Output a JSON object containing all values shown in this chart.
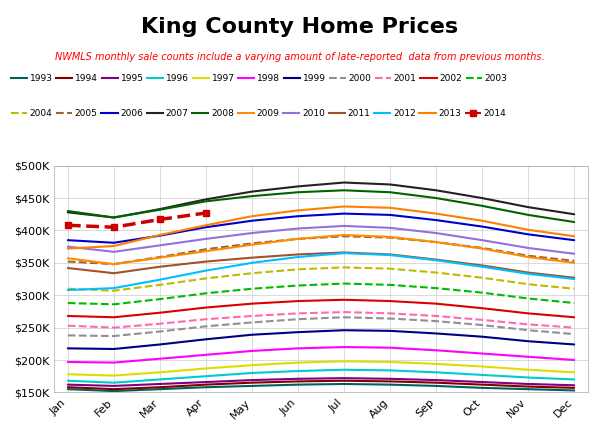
{
  "title": "King County Home Prices",
  "subtitle": "NWMLS monthly sale counts include a varying amount of late-reported  data from previous months.",
  "months": [
    "Jan",
    "Feb",
    "Mar",
    "Apr",
    "May",
    "Jun",
    "Jul",
    "Aug",
    "Sep",
    "Oct",
    "Nov",
    "Dec"
  ],
  "ylim": [
    150000,
    500000
  ],
  "yticks": [
    150000,
    200000,
    250000,
    300000,
    350000,
    400000,
    450000,
    500000
  ],
  "series": [
    {
      "year": "1993",
      "color": "#006060",
      "linestyle": "solid",
      "linewidth": 1.5,
      "values": [
        155000,
        152000,
        155000,
        158000,
        160000,
        162000,
        163000,
        162000,
        160000,
        157000,
        155000,
        153000
      ]
    },
    {
      "year": "1994",
      "color": "#800000",
      "linestyle": "solid",
      "linewidth": 1.5,
      "values": [
        158000,
        155000,
        158000,
        162000,
        165000,
        167000,
        168000,
        167000,
        165000,
        162000,
        159000,
        157000
      ]
    },
    {
      "year": "1995",
      "color": "#800080",
      "linestyle": "solid",
      "linewidth": 1.5,
      "values": [
        162000,
        160000,
        163000,
        166000,
        169000,
        171000,
        172000,
        171000,
        169000,
        166000,
        163000,
        161000
      ]
    },
    {
      "year": "1996",
      "color": "#00CCCC",
      "linestyle": "solid",
      "linewidth": 1.5,
      "values": [
        168000,
        165000,
        170000,
        175000,
        180000,
        183000,
        185000,
        184000,
        181000,
        177000,
        173000,
        170000
      ]
    },
    {
      "year": "1997",
      "color": "#DDDD00",
      "linestyle": "solid",
      "linewidth": 1.5,
      "values": [
        178000,
        176000,
        181000,
        187000,
        192000,
        196000,
        198000,
        197000,
        194000,
        190000,
        185000,
        181000
      ]
    },
    {
      "year": "1998",
      "color": "#FF00FF",
      "linestyle": "solid",
      "linewidth": 1.5,
      "values": [
        197000,
        196000,
        202000,
        208000,
        214000,
        218000,
        220000,
        219000,
        215000,
        210000,
        205000,
        200000
      ]
    },
    {
      "year": "1999",
      "color": "#000080",
      "linestyle": "solid",
      "linewidth": 1.5,
      "values": [
        218000,
        217000,
        224000,
        232000,
        239000,
        243000,
        246000,
        245000,
        241000,
        236000,
        229000,
        224000
      ]
    },
    {
      "year": "2000",
      "color": "#909090",
      "linestyle": "dashed",
      "linewidth": 1.5,
      "values": [
        238000,
        237000,
        244000,
        252000,
        258000,
        263000,
        266000,
        264000,
        260000,
        254000,
        246000,
        240000
      ]
    },
    {
      "year": "2001",
      "color": "#FF69B4",
      "linestyle": "dashed",
      "linewidth": 1.5,
      "values": [
        253000,
        250000,
        256000,
        263000,
        268000,
        272000,
        274000,
        272000,
        268000,
        262000,
        255000,
        250000
      ]
    },
    {
      "year": "2002",
      "color": "#DD0000",
      "linestyle": "solid",
      "linewidth": 1.5,
      "values": [
        268000,
        266000,
        273000,
        281000,
        287000,
        291000,
        293000,
        291000,
        287000,
        280000,
        272000,
        266000
      ]
    },
    {
      "year": "2003",
      "color": "#00BB00",
      "linestyle": "dashed",
      "linewidth": 1.5,
      "values": [
        288000,
        286000,
        294000,
        303000,
        310000,
        315000,
        318000,
        316000,
        311000,
        304000,
        295000,
        288000
      ]
    },
    {
      "year": "2004",
      "color": "#BBBB00",
      "linestyle": "dashed",
      "linewidth": 1.5,
      "values": [
        310000,
        307000,
        316000,
        326000,
        334000,
        340000,
        343000,
        341000,
        335000,
        327000,
        317000,
        310000
      ]
    },
    {
      "year": "2005",
      "color": "#996633",
      "linestyle": "dashed",
      "linewidth": 1.5,
      "values": [
        352000,
        348000,
        359000,
        371000,
        380000,
        387000,
        391000,
        389000,
        382000,
        373000,
        361000,
        353000
      ]
    },
    {
      "year": "2006",
      "color": "#0000CC",
      "linestyle": "solid",
      "linewidth": 1.5,
      "values": [
        385000,
        381000,
        392000,
        405000,
        415000,
        422000,
        426000,
        424000,
        416000,
        406000,
        394000,
        385000
      ]
    },
    {
      "year": "2007",
      "color": "#222222",
      "linestyle": "solid",
      "linewidth": 1.5,
      "values": [
        428000,
        420000,
        433000,
        448000,
        460000,
        468000,
        474000,
        471000,
        462000,
        450000,
        436000,
        425000
      ]
    },
    {
      "year": "2008",
      "color": "#006400",
      "linestyle": "solid",
      "linewidth": 1.5,
      "values": [
        430000,
        420000,
        432000,
        445000,
        453000,
        459000,
        462000,
        459000,
        450000,
        438000,
        424000,
        413000
      ]
    },
    {
      "year": "2009",
      "color": "#FF8C00",
      "linestyle": "solid",
      "linewidth": 1.5,
      "values": [
        357000,
        348000,
        358000,
        368000,
        378000,
        387000,
        393000,
        390000,
        382000,
        372000,
        359000,
        350000
      ]
    },
    {
      "year": "2010",
      "color": "#9370DB",
      "linestyle": "solid",
      "linewidth": 1.5,
      "values": [
        375000,
        367000,
        377000,
        387000,
        396000,
        403000,
        407000,
        404000,
        396000,
        385000,
        373000,
        364000
      ]
    },
    {
      "year": "2011",
      "color": "#A0522D",
      "linestyle": "solid",
      "linewidth": 1.5,
      "values": [
        342000,
        334000,
        344000,
        352000,
        358000,
        363000,
        366000,
        363000,
        355000,
        346000,
        335000,
        327000
      ]
    },
    {
      "year": "2012",
      "color": "#00BFFF",
      "linestyle": "solid",
      "linewidth": 1.5,
      "values": [
        308000,
        311000,
        324000,
        338000,
        350000,
        359000,
        365000,
        362000,
        354000,
        344000,
        333000,
        325000
      ]
    },
    {
      "year": "2013",
      "color": "#FF8000",
      "linestyle": "solid",
      "linewidth": 1.5,
      "values": [
        372000,
        376000,
        393000,
        408000,
        422000,
        431000,
        437000,
        435000,
        426000,
        415000,
        401000,
        391000
      ]
    },
    {
      "year": "2014",
      "color": "#CC0000",
      "linestyle": "dashed",
      "linewidth": 2.5,
      "marker": "s",
      "markersize": 5,
      "values": [
        408000,
        405000,
        417000,
        427000,
        null,
        null,
        null,
        null,
        null,
        null,
        null,
        null
      ]
    }
  ],
  "legend_row1": [
    {
      "year": "1993",
      "color": "#006060",
      "linestyle": "solid",
      "marker": null
    },
    {
      "year": "1994",
      "color": "#800000",
      "linestyle": "solid",
      "marker": null
    },
    {
      "year": "1995",
      "color": "#800080",
      "linestyle": "solid",
      "marker": null
    },
    {
      "year": "1996",
      "color": "#00CCCC",
      "linestyle": "solid",
      "marker": null
    },
    {
      "year": "1997",
      "color": "#DDDD00",
      "linestyle": "solid",
      "marker": null
    },
    {
      "year": "1998",
      "color": "#FF00FF",
      "linestyle": "solid",
      "marker": null
    },
    {
      "year": "1999",
      "color": "#000080",
      "linestyle": "solid",
      "marker": null
    },
    {
      "year": "2000",
      "color": "#909090",
      "linestyle": "dashed",
      "marker": null
    },
    {
      "year": "2001",
      "color": "#FF69B4",
      "linestyle": "dashed",
      "marker": null
    },
    {
      "year": "2002",
      "color": "#DD0000",
      "linestyle": "solid",
      "marker": null
    },
    {
      "year": "2003",
      "color": "#00BB00",
      "linestyle": "dashed",
      "marker": null
    }
  ],
  "legend_row2": [
    {
      "year": "2004",
      "color": "#BBBB00",
      "linestyle": "dashed",
      "marker": null
    },
    {
      "year": "2005",
      "color": "#996633",
      "linestyle": "dashed",
      "marker": null
    },
    {
      "year": "2006",
      "color": "#0000CC",
      "linestyle": "solid",
      "marker": null
    },
    {
      "year": "2007",
      "color": "#222222",
      "linestyle": "solid",
      "marker": null
    },
    {
      "year": "2008",
      "color": "#006400",
      "linestyle": "solid",
      "marker": null
    },
    {
      "year": "2009",
      "color": "#FF8C00",
      "linestyle": "solid",
      "marker": null
    },
    {
      "year": "2010",
      "color": "#9370DB",
      "linestyle": "solid",
      "marker": null
    },
    {
      "year": "2011",
      "color": "#A0522D",
      "linestyle": "solid",
      "marker": null
    },
    {
      "year": "2012",
      "color": "#00BFFF",
      "linestyle": "solid",
      "marker": null
    },
    {
      "year": "2013",
      "color": "#FF8000",
      "linestyle": "solid",
      "marker": null
    },
    {
      "year": "2014",
      "color": "#CC0000",
      "linestyle": "dashed",
      "marker": "s"
    }
  ]
}
